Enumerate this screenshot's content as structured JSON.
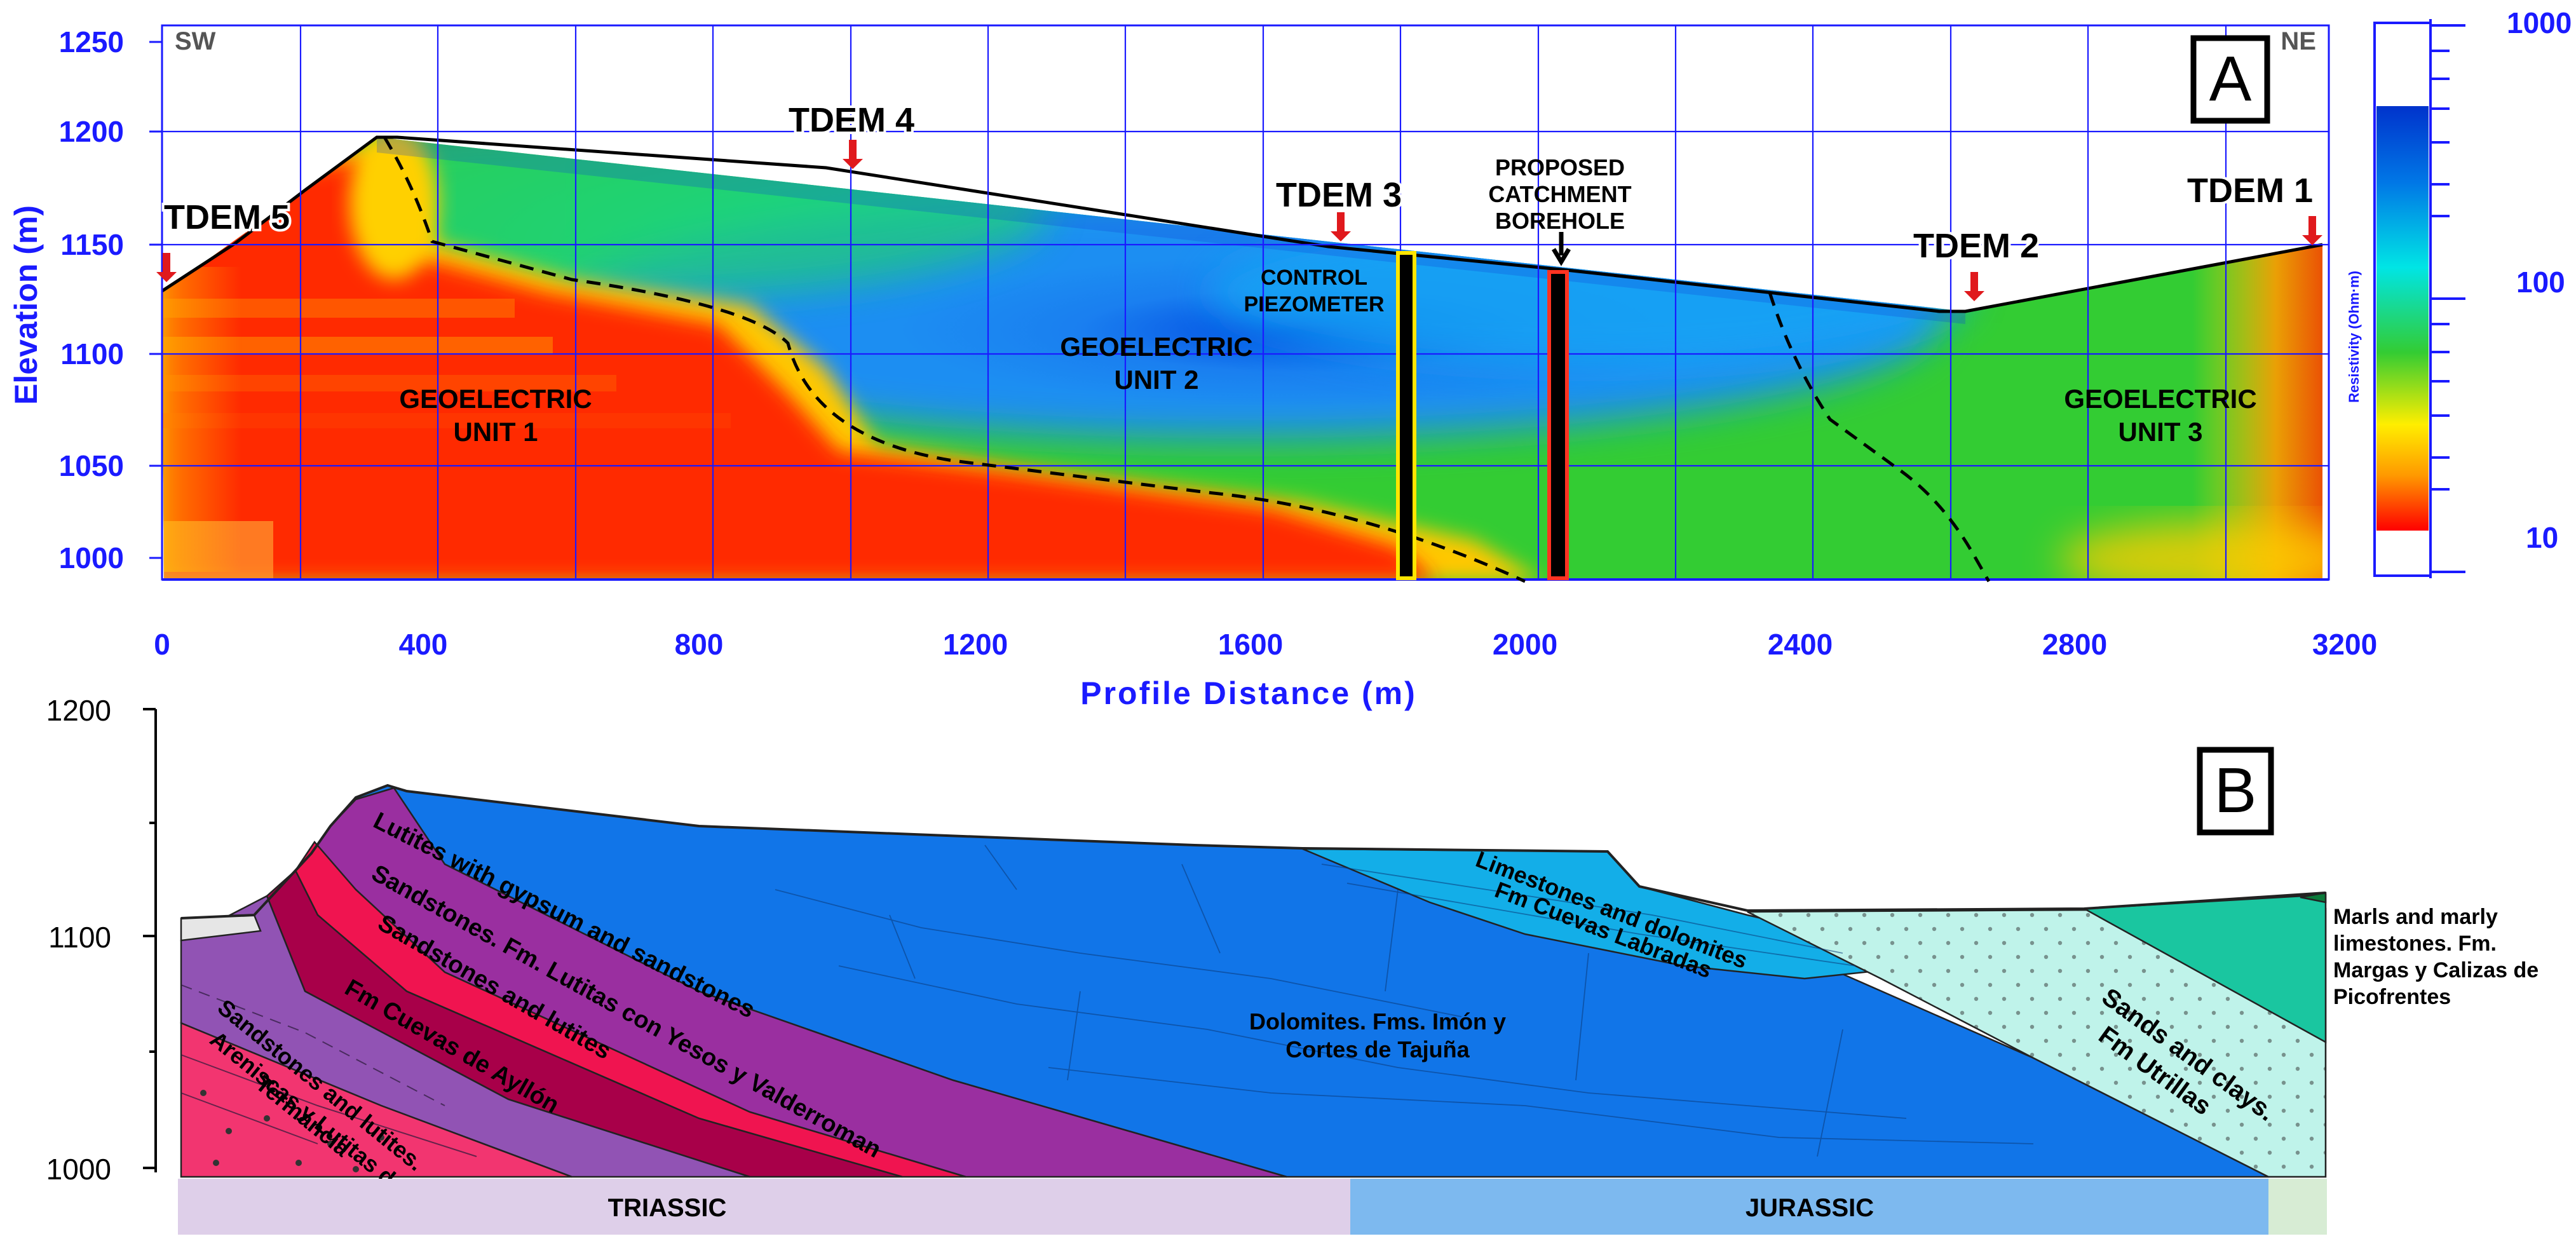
{
  "panel_a": {
    "letter": "A",
    "corner_left": "SW",
    "corner_right": "NE",
    "y_label": "Elevation (m)",
    "x_label": "Profile Distance (m)",
    "y_ticks": [
      "1250",
      "1200",
      "1150",
      "1100",
      "1050",
      "1000"
    ],
    "x_ticks": [
      "0",
      "400",
      "800",
      "1200",
      "1600",
      "2000",
      "2400",
      "2800",
      "3200"
    ],
    "stations": [
      {
        "label": "TDEM 5",
        "distance": 0,
        "elevation": 1130
      },
      {
        "label": "TDEM 4",
        "distance": 1000,
        "elevation": 1184
      },
      {
        "label": "TDEM 3",
        "distance": 1720,
        "elevation": 1148
      },
      {
        "label": "TDEM 2",
        "distance": 2640,
        "elevation": 1120
      },
      {
        "label": "TDEM 1",
        "distance": 3130,
        "elevation": 1148
      }
    ],
    "units": [
      {
        "line1": "GEOELECTRIC",
        "line2": "UNIT 1"
      },
      {
        "line1": "GEOELECTRIC",
        "line2": "UNIT 2"
      },
      {
        "line1": "GEOELECTRIC",
        "line2": "UNIT 3"
      }
    ],
    "piezometer": {
      "line1": "CONTROL",
      "line2": "PIEZOMETER"
    },
    "borehole": {
      "line1": "PROPOSED",
      "line2": "CATCHMENT",
      "line3": "BOREHOLE"
    },
    "colorbar": {
      "title": "Resistivity (Ohm·m)",
      "tick_top": "1000",
      "tick_mid": "100",
      "tick_bottom": "10"
    }
  },
  "panel_b": {
    "letter": "B",
    "y_ticks": [
      "1200",
      "1100",
      "1000"
    ],
    "layers": {
      "lutites_gypsum": "Lutites with gypsum and sandstones",
      "sandstones_fm": "Sandstones. Fm. Lutitas con Yesos y Valderroman",
      "sandstones_lutites": "Sandstones and lutites",
      "cuevas_ayllon": "Fm Cuevas de Ayllón",
      "termancia_1": "Sandstones and lutites.",
      "termancia_2": "Areniscas y Lutitas de",
      "termancia_3": "Termancia",
      "dolomites_1": "Dolomites. Fms. Imón y",
      "dolomites_2": "Cortes de Tajuña",
      "limestones_1": "Limestones and dolomites",
      "limestones_2": "Fm Cuevas Labradas",
      "sands_1": "Sands and clays.",
      "sands_2": "Fm Utrillas",
      "marls_1": "Marls and marly",
      "marls_2": "limestones. Fm.",
      "marls_3": "Margas y Calizas de",
      "marls_4": "Picofrentes"
    },
    "periods": {
      "triassic": "TRIASSIC",
      "jurassic": "JURASSIC"
    }
  },
  "colors": {
    "grid": "#1a1aff",
    "marker": "#e0191d",
    "triassic_band": "#decfe9",
    "jurassic_band": "#7db9ef",
    "cretaceous_band": "#d7ecd4"
  }
}
